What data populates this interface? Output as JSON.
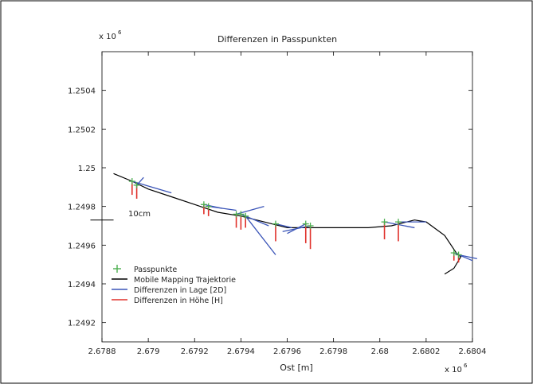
{
  "chart_data": {
    "type": "line",
    "title": "Differenzen in Passpunkten",
    "xlabel": "Ost [m]",
    "ylabel": "",
    "x_exponent": "x 10",
    "x_exponent_power": "6",
    "y_exponent": "x 10",
    "y_exponent_power": "6",
    "xlim": [
      2.6788,
      2.6804
    ],
    "ylim": [
      1.2491,
      1.2506
    ],
    "x_ticks": [
      2.6788,
      2.679,
      2.6792,
      2.6794,
      2.6796,
      2.6798,
      2.68,
      2.6802,
      2.6804
    ],
    "x_tick_labels": [
      "2.6788",
      "2.679",
      "2.6792",
      "2.6794",
      "2.6796",
      "2.6798",
      "2.68",
      "2.6802",
      "2.6804"
    ],
    "y_ticks": [
      1.2492,
      1.2494,
      1.2496,
      1.2498,
      1.25,
      1.2502,
      1.2504
    ],
    "y_tick_labels": [
      "1.2492",
      "1.2494",
      "1.2496",
      "1.2498",
      "1.25",
      "1.2502",
      "1.2504"
    ],
    "grid": false,
    "scale_bar_label": "10cm",
    "legend_position": "bottom-left",
    "legend": [
      {
        "name": "Passpunkte",
        "color": "#4caf50",
        "marker": "plus"
      },
      {
        "name": "Mobile Mapping Trajektorie",
        "color": "#000000",
        "marker": "line"
      },
      {
        "name": "Differenzen in Lage [2D]",
        "color": "#3b55b8",
        "marker": "line"
      },
      {
        "name": "Differenzen in Höhe [H]",
        "color": "#e0302a",
        "marker": "line"
      }
    ],
    "trajectory": {
      "name": "Mobile Mapping Trajektorie",
      "color": "#000000",
      "points": [
        [
          2.67885,
          1.24997
        ],
        [
          2.67893,
          1.24993
        ],
        [
          2.679,
          1.24989
        ],
        [
          2.6791,
          1.24985
        ],
        [
          2.6792,
          1.24981
        ],
        [
          2.6793,
          1.24977
        ],
        [
          2.6794,
          1.24975
        ],
        [
          2.6795,
          1.24972
        ],
        [
          2.6796,
          1.24969
        ],
        [
          2.67966,
          1.24969
        ],
        [
          2.6798,
          1.24969
        ],
        [
          2.67995,
          1.24969
        ],
        [
          2.68005,
          1.2497
        ],
        [
          2.68015,
          1.24973
        ],
        [
          2.6802,
          1.24972
        ],
        [
          2.68028,
          1.24965
        ],
        [
          2.68033,
          1.24956
        ],
        [
          2.68035,
          1.24954
        ],
        [
          2.68032,
          1.24948
        ],
        [
          2.68028,
          1.24945
        ]
      ]
    },
    "control_points": {
      "name": "Passpunkte",
      "color": "#4caf50",
      "points": [
        [
          2.67893,
          1.24993
        ],
        [
          2.67895,
          1.24991
        ],
        [
          2.67924,
          1.24981
        ],
        [
          2.67926,
          1.2498
        ],
        [
          2.67938,
          1.24976
        ],
        [
          2.6794,
          1.24976
        ],
        [
          2.67942,
          1.24975
        ],
        [
          2.67955,
          1.24971
        ],
        [
          2.67968,
          1.24971
        ],
        [
          2.6797,
          1.2497
        ],
        [
          2.68002,
          1.24972
        ],
        [
          2.68008,
          1.24972
        ],
        [
          2.68032,
          1.24956
        ],
        [
          2.68034,
          1.24955
        ]
      ]
    },
    "diff_2d": {
      "name": "Differenzen in Lage [2D]",
      "color": "#3b55b8",
      "vectors": [
        [
          2.67893,
          1.24993,
          2.6791,
          1.24987
        ],
        [
          2.67895,
          1.24991,
          2.67898,
          1.24995
        ],
        [
          2.67924,
          1.24981,
          2.67932,
          1.24979
        ],
        [
          2.67926,
          1.2498,
          2.67938,
          1.24978
        ],
        [
          2.67938,
          1.24976,
          2.6795,
          1.2498
        ],
        [
          2.6794,
          1.24976,
          2.67952,
          1.2497
        ],
        [
          2.67942,
          1.24975,
          2.67955,
          1.24955
        ],
        [
          2.67955,
          1.24971,
          2.67962,
          1.24969
        ],
        [
          2.67968,
          1.24971,
          2.6796,
          1.24966
        ],
        [
          2.6797,
          1.2497,
          2.67958,
          1.24967
        ],
        [
          2.68002,
          1.24972,
          2.68015,
          1.24969
        ],
        [
          2.68008,
          1.24972,
          2.6802,
          1.24972
        ],
        [
          2.68032,
          1.24956,
          2.6804,
          1.24952
        ],
        [
          2.68034,
          1.24955,
          2.68042,
          1.24953
        ]
      ]
    },
    "diff_h": {
      "name": "Differenzen in Höhe [H]",
      "color": "#e0302a",
      "vectors": [
        [
          2.67893,
          1.24993,
          2.67893,
          1.24986
        ],
        [
          2.67895,
          1.24991,
          2.67895,
          1.24984
        ],
        [
          2.67924,
          1.24981,
          2.67924,
          1.24976
        ],
        [
          2.67926,
          1.2498,
          2.67926,
          1.24975
        ],
        [
          2.67938,
          1.24976,
          2.67938,
          1.24969
        ],
        [
          2.6794,
          1.24976,
          2.6794,
          1.24968
        ],
        [
          2.67942,
          1.24975,
          2.67942,
          1.24969
        ],
        [
          2.67955,
          1.24971,
          2.67955,
          1.24962
        ],
        [
          2.67968,
          1.24971,
          2.67968,
          1.24961
        ],
        [
          2.6797,
          1.2497,
          2.6797,
          1.24958
        ],
        [
          2.68002,
          1.24972,
          2.68002,
          1.24963
        ],
        [
          2.68008,
          1.24972,
          2.68008,
          1.24962
        ],
        [
          2.68032,
          1.24956,
          2.68032,
          1.24952
        ],
        [
          2.68034,
          1.24955,
          2.68034,
          1.24951
        ]
      ]
    },
    "scale_bar": {
      "x": [
        2.67875,
        2.67885
      ],
      "y": 1.24973
    }
  }
}
